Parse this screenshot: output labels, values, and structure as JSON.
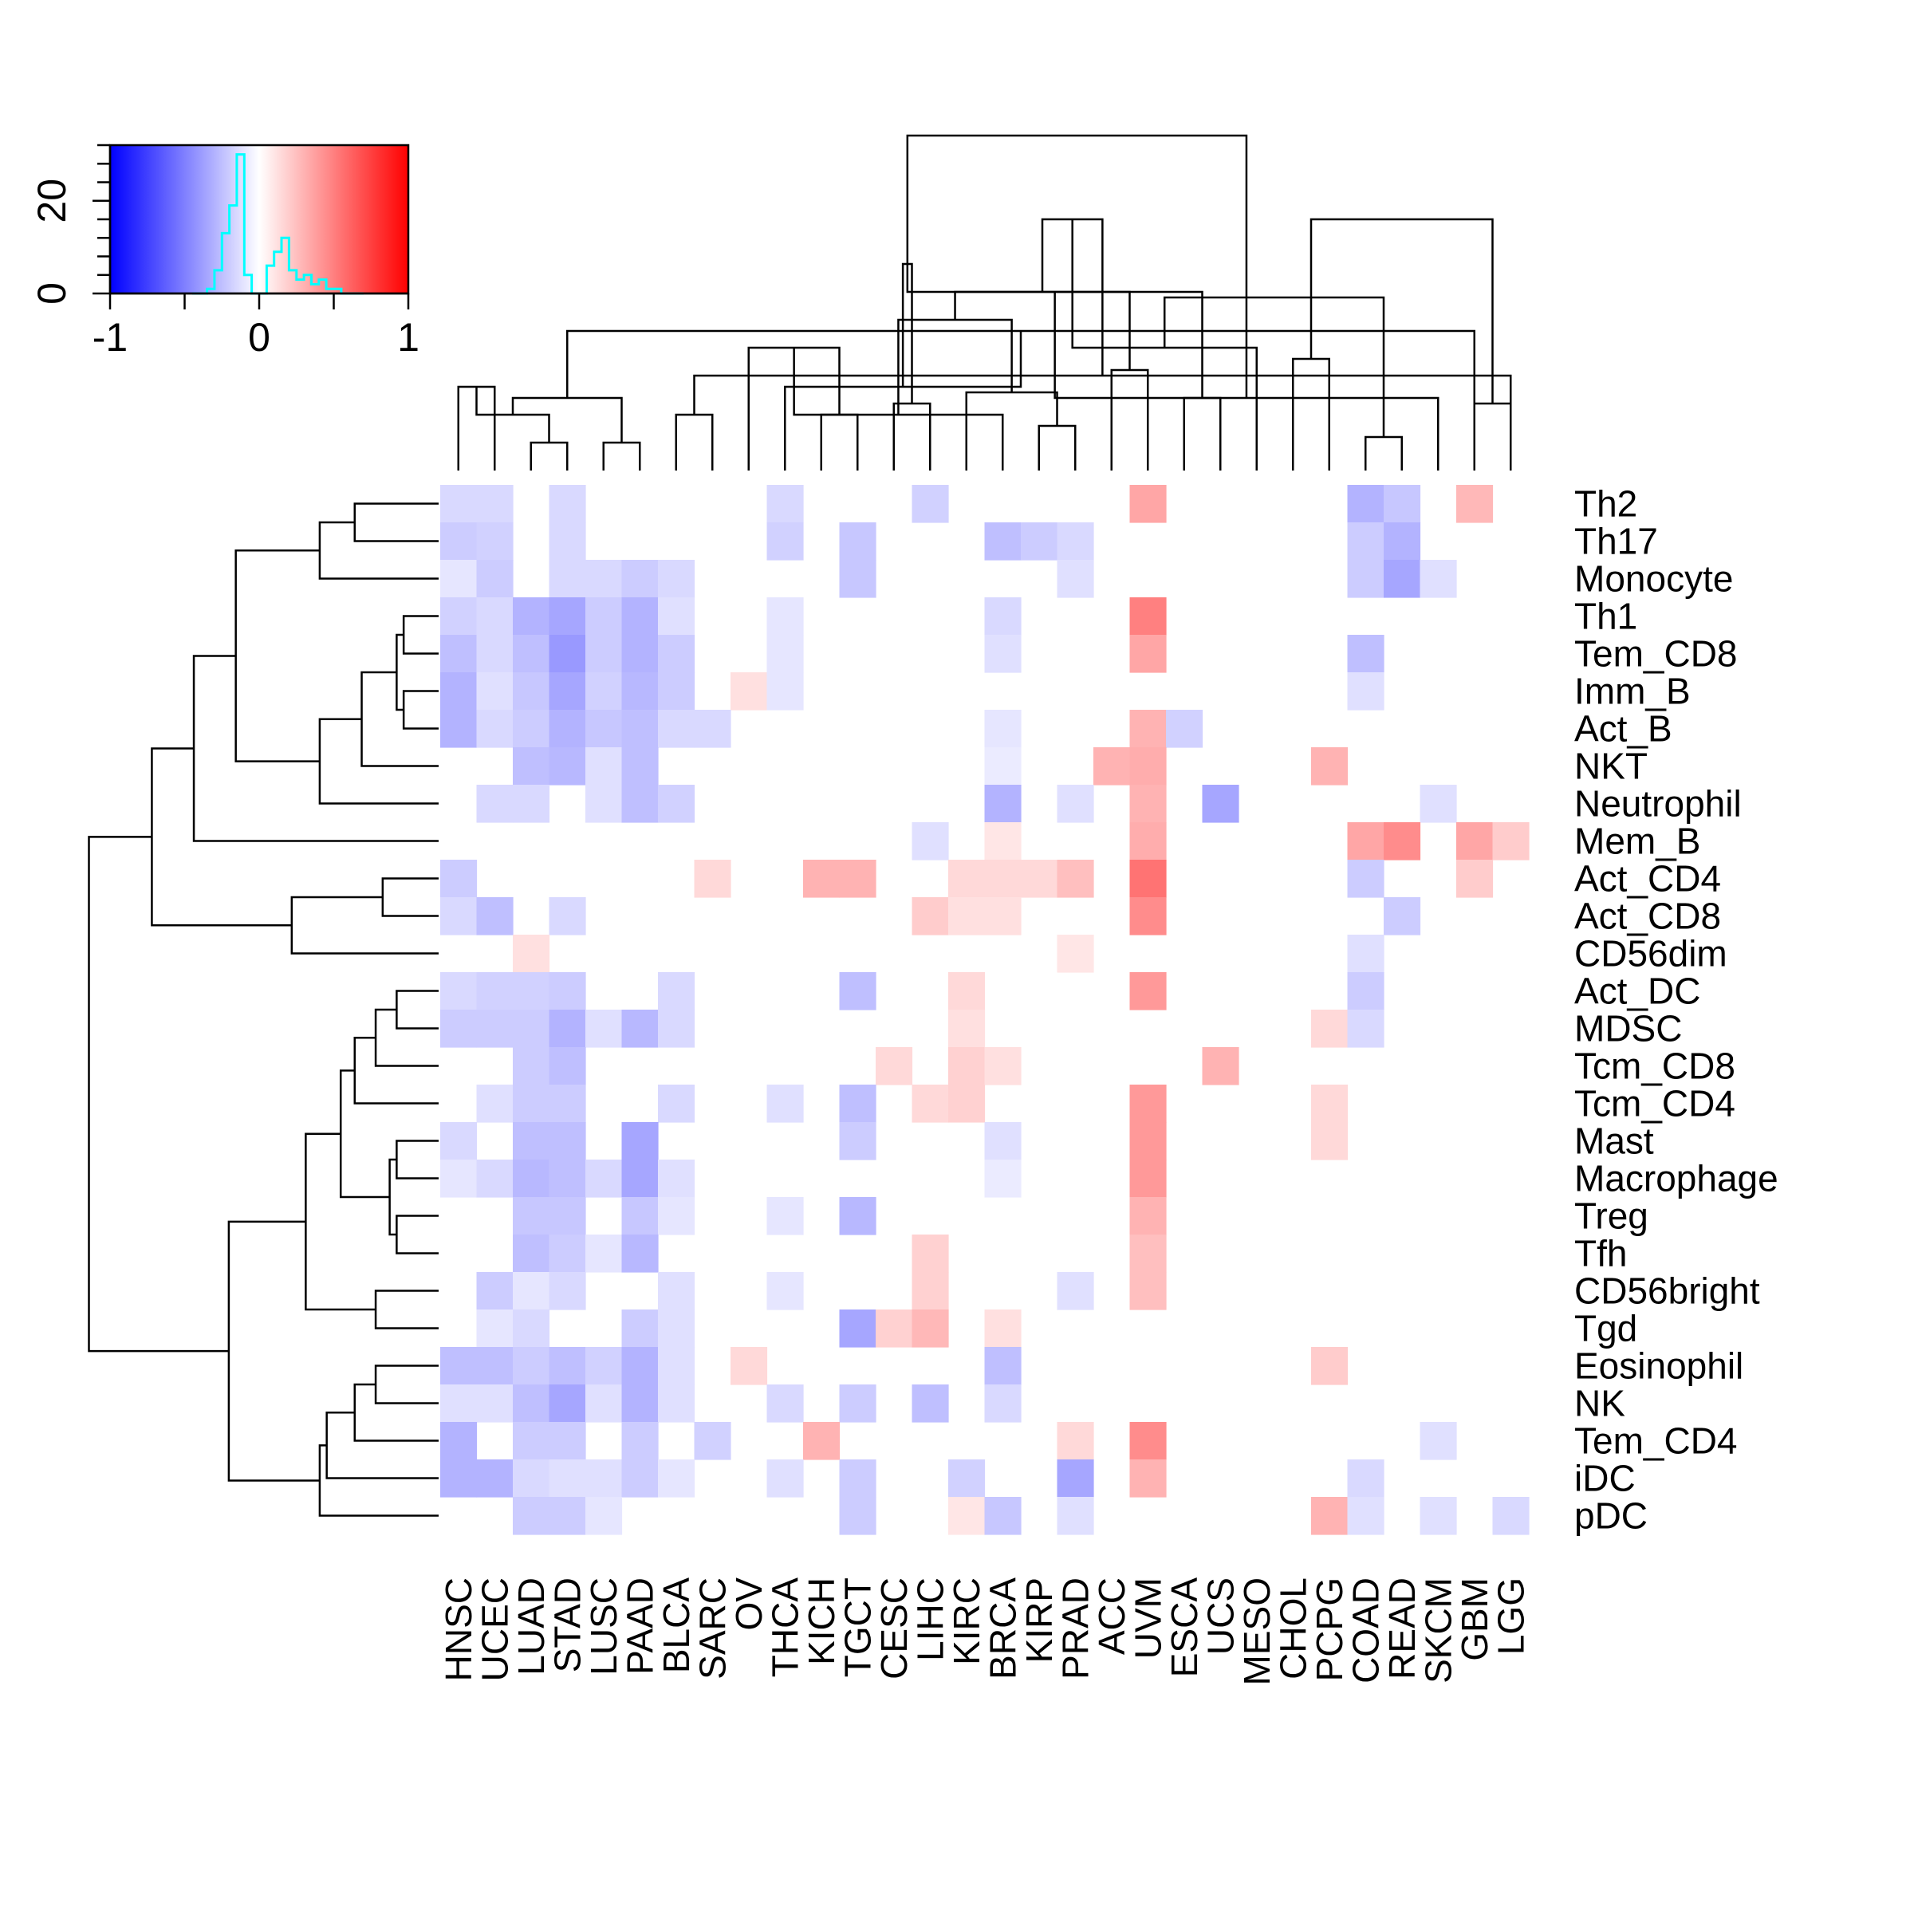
{
  "chart_data": {
    "type": "heatmap",
    "title": "",
    "columns": [
      "HNSC",
      "UCEC",
      "LUAD",
      "STAD",
      "LUSC",
      "PAAD",
      "BLCA",
      "SARC",
      "OV",
      "THCA",
      "KICH",
      "TGCT",
      "CESC",
      "LIHC",
      "KIRC",
      "BRCA",
      "KIRP",
      "PRAD",
      "ACC",
      "UVM",
      "ESCA",
      "UCS",
      "MESO",
      "CHOL",
      "PCPG",
      "COAD",
      "READ",
      "SKCM",
      "GBM",
      "LGG"
    ],
    "rows": [
      "Th2",
      "Th17",
      "Monocyte",
      "Th1",
      "Tem_CD8",
      "Imm_B",
      "Act_B",
      "NKT",
      "Neutrophil",
      "Mem_B",
      "Act_CD4",
      "Act_CD8",
      "CD56dim",
      "Act_DC",
      "MDSC",
      "Tcm_CD8",
      "Tcm_CD4",
      "Mast",
      "Macrophage",
      "Treg",
      "Tfh",
      "CD56bright",
      "Tgd",
      "Eosinophil",
      "NK",
      "Tem_CD4",
      "iDC",
      "pDC"
    ],
    "values": [
      [
        -0.15,
        -0.15,
        0,
        -0.15,
        0,
        0,
        0,
        0,
        0,
        -0.15,
        0,
        0,
        0,
        -0.18,
        0,
        0,
        0,
        0,
        0,
        0.35,
        0,
        0,
        0,
        0,
        0,
        -0.3,
        -0.22,
        0,
        0.28,
        0
      ],
      [
        -0.2,
        -0.18,
        0,
        -0.15,
        0,
        0,
        0,
        0,
        0,
        -0.18,
        0,
        -0.22,
        0,
        0,
        0,
        -0.25,
        -0.2,
        -0.15,
        0,
        0,
        0,
        0,
        0,
        0,
        0,
        -0.2,
        -0.3,
        0,
        0,
        0
      ],
      [
        -0.1,
        -0.2,
        0,
        -0.15,
        -0.15,
        -0.2,
        -0.15,
        0,
        0,
        0,
        0,
        -0.22,
        0,
        0,
        0,
        0,
        0,
        -0.12,
        0,
        0,
        0,
        0,
        0,
        0,
        0,
        -0.2,
        -0.35,
        -0.12,
        0,
        0
      ],
      [
        -0.18,
        -0.15,
        -0.3,
        -0.35,
        -0.2,
        -0.3,
        -0.12,
        0,
        0,
        -0.1,
        0,
        0,
        0,
        0,
        0,
        -0.15,
        0,
        0,
        0,
        0.5,
        0,
        0,
        0,
        0,
        0,
        0,
        0,
        0,
        0,
        0
      ],
      [
        -0.25,
        -0.15,
        -0.25,
        -0.4,
        -0.2,
        -0.3,
        -0.2,
        0,
        0,
        -0.1,
        0,
        0,
        0,
        0,
        0,
        -0.12,
        0,
        0,
        0,
        0.35,
        0,
        0,
        0,
        0,
        0,
        -0.25,
        0,
        0,
        0,
        0
      ],
      [
        -0.3,
        -0.12,
        -0.22,
        -0.35,
        -0.18,
        -0.28,
        -0.2,
        0,
        0.12,
        -0.1,
        0,
        0,
        0,
        0,
        0,
        0,
        0,
        0,
        0,
        0,
        0,
        0,
        0,
        0,
        0,
        -0.12,
        0,
        0,
        0,
        0
      ],
      [
        -0.3,
        -0.15,
        -0.2,
        -0.3,
        -0.22,
        -0.25,
        -0.15,
        -0.15,
        0,
        0,
        0,
        0,
        0,
        0,
        0,
        -0.1,
        0,
        0,
        0,
        0.3,
        -0.18,
        0,
        0,
        0,
        0,
        0,
        0,
        0,
        0,
        0
      ],
      [
        0,
        0,
        -0.25,
        -0.28,
        -0.12,
        -0.25,
        0,
        0,
        0,
        0,
        0,
        0,
        0,
        0,
        0,
        -0.08,
        0,
        0,
        0.3,
        0.32,
        0,
        0,
        0,
        0,
        0.3,
        0,
        0,
        0,
        0,
        0
      ],
      [
        0,
        -0.15,
        -0.15,
        0,
        -0.12,
        -0.25,
        -0.18,
        0,
        0,
        0,
        0,
        0,
        0,
        0,
        0,
        -0.3,
        0,
        -0.12,
        0,
        0.3,
        0,
        -0.35,
        0,
        0,
        0,
        0,
        0,
        -0.12,
        0,
        0
      ],
      [
        0,
        0,
        0,
        0,
        0,
        0,
        0,
        0,
        0,
        0,
        0,
        0,
        0,
        -0.12,
        0,
        0.1,
        0,
        0,
        0,
        0.32,
        0,
        0,
        0,
        0,
        0,
        0.35,
        0.45,
        0,
        0.35,
        0.2
      ],
      [
        -0.2,
        0,
        0,
        0,
        0,
        0,
        0,
        0.15,
        0,
        0,
        0.3,
        0.3,
        0,
        0,
        0.15,
        0.15,
        0.15,
        0.25,
        0,
        0.55,
        0,
        0,
        0,
        0,
        0,
        -0.2,
        0,
        0,
        0.2,
        0
      ],
      [
        -0.15,
        -0.25,
        0,
        -0.15,
        0,
        0,
        0,
        0,
        0,
        0,
        0,
        0,
        0,
        0.2,
        0.12,
        0.12,
        0,
        0,
        0,
        0.45,
        0,
        0,
        0,
        0,
        0,
        0,
        -0.2,
        0,
        0,
        0
      ],
      [
        0,
        0,
        0.12,
        0,
        0,
        0,
        0,
        0,
        0,
        0,
        0,
        0,
        0,
        0,
        0,
        0,
        0,
        0.1,
        0,
        0,
        0,
        0,
        0,
        0,
        0,
        -0.12,
        0,
        0,
        0,
        0
      ],
      [
        -0.15,
        -0.18,
        -0.18,
        -0.2,
        0,
        0,
        -0.15,
        0,
        0,
        0,
        0,
        -0.25,
        0,
        0,
        0.15,
        0,
        0,
        0,
        0,
        0.4,
        0,
        0,
        0,
        0,
        0,
        -0.2,
        0,
        0,
        0,
        0
      ],
      [
        -0.2,
        -0.2,
        -0.2,
        -0.3,
        -0.12,
        -0.28,
        -0.15,
        0,
        0,
        0,
        0,
        0,
        0,
        0,
        0.12,
        0,
        0,
        0,
        0,
        0,
        0,
        0,
        0,
        0,
        0.15,
        -0.15,
        0,
        0,
        0,
        0
      ],
      [
        0,
        0,
        -0.2,
        -0.25,
        0,
        0,
        0,
        0,
        0,
        0,
        0,
        0,
        0.15,
        0,
        0.18,
        0.12,
        0,
        0,
        0,
        0,
        0,
        0.3,
        0,
        0,
        0,
        0,
        0,
        0,
        0,
        0
      ],
      [
        0,
        -0.12,
        -0.2,
        -0.2,
        0,
        0,
        -0.15,
        0,
        0,
        -0.12,
        0,
        -0.25,
        0,
        0.15,
        0.18,
        0,
        0,
        0,
        0,
        0.4,
        0,
        0,
        0,
        0,
        0.15,
        0,
        0,
        0,
        0,
        0
      ],
      [
        -0.15,
        0,
        -0.25,
        -0.25,
        0,
        -0.35,
        0,
        0,
        0,
        0,
        0,
        -0.2,
        0,
        0,
        0,
        -0.12,
        0,
        0,
        0,
        0.4,
        0,
        0,
        0,
        0,
        0.15,
        0,
        0,
        0,
        0,
        0
      ],
      [
        -0.1,
        -0.15,
        -0.28,
        -0.25,
        -0.15,
        -0.35,
        -0.12,
        0,
        0,
        0,
        0,
        0,
        0,
        0,
        0,
        -0.08,
        0,
        0,
        0,
        0.4,
        0,
        0,
        0,
        0,
        0,
        0,
        0,
        0,
        0,
        0
      ],
      [
        0,
        0,
        -0.22,
        -0.22,
        0,
        -0.22,
        -0.1,
        0,
        0,
        -0.1,
        0,
        -0.28,
        0,
        0,
        0,
        0,
        0,
        0,
        0,
        0.3,
        0,
        0,
        0,
        0,
        0,
        0,
        0,
        0,
        0,
        0
      ],
      [
        0,
        0,
        -0.25,
        -0.2,
        -0.1,
        -0.28,
        0,
        0,
        0,
        0,
        0,
        0,
        0,
        0.18,
        0,
        0,
        0,
        0,
        0,
        0.25,
        0,
        0,
        0,
        0,
        0,
        0,
        0,
        0,
        0,
        0
      ],
      [
        0,
        -0.2,
        -0.1,
        -0.15,
        0,
        0,
        -0.12,
        0,
        0,
        -0.1,
        0,
        0,
        0,
        0.18,
        0,
        0,
        0,
        -0.12,
        0,
        0.25,
        0,
        0,
        0,
        0,
        0,
        0,
        0,
        0,
        0,
        0
      ],
      [
        0,
        -0.1,
        -0.15,
        0,
        0,
        -0.2,
        -0.12,
        0,
        0,
        0,
        0,
        -0.35,
        0.18,
        0.28,
        0,
        0.12,
        0,
        0,
        0,
        0,
        0,
        0,
        0,
        0,
        0,
        0,
        0,
        0,
        0,
        0
      ],
      [
        -0.25,
        -0.25,
        -0.2,
        -0.25,
        -0.18,
        -0.3,
        -0.12,
        0,
        0.15,
        0,
        0,
        0,
        0,
        0,
        0,
        -0.25,
        0,
        0,
        0,
        0,
        0,
        0,
        0,
        0,
        0.2,
        0,
        0,
        0,
        0,
        0
      ],
      [
        -0.12,
        -0.12,
        -0.25,
        -0.35,
        -0.12,
        -0.3,
        -0.12,
        0,
        0,
        -0.15,
        0,
        -0.2,
        0,
        -0.25,
        0,
        -0.15,
        0,
        0,
        0,
        0,
        0,
        0,
        0,
        0,
        0,
        0,
        0,
        0,
        0,
        0
      ],
      [
        -0.3,
        0,
        -0.2,
        -0.2,
        0,
        -0.2,
        0,
        -0.18,
        0,
        0,
        0.3,
        0,
        0,
        0,
        0,
        0,
        0,
        0.15,
        0,
        0.45,
        0,
        0,
        0,
        0,
        0,
        0,
        0,
        -0.12,
        0,
        0
      ],
      [
        -0.3,
        -0.3,
        -0.15,
        -0.12,
        -0.12,
        -0.2,
        -0.1,
        0,
        0,
        -0.12,
        0,
        -0.2,
        0,
        0,
        -0.18,
        0,
        0,
        -0.35,
        0,
        0.3,
        0,
        0,
        0,
        0,
        0,
        -0.15,
        0,
        0,
        0,
        0
      ],
      [
        0,
        0,
        -0.2,
        -0.2,
        -0.1,
        0,
        0,
        0,
        0,
        0,
        0,
        -0.2,
        0,
        0,
        0.1,
        -0.22,
        0,
        -0.12,
        0,
        0,
        0,
        0,
        0,
        0,
        0.3,
        -0.12,
        0,
        -0.12,
        0,
        -0.15
      ]
    ],
    "col_dendrogram": [
      [
        0,
        1,
        0.15
      ],
      [
        2,
        3,
        0.05
      ],
      [
        4,
        5,
        0.05
      ],
      [
        30,
        31,
        0.1
      ],
      [
        6,
        7,
        0.1
      ],
      [
        32,
        33,
        0.13
      ],
      [
        29,
        34,
        0.17
      ],
      [
        28,
        35,
        0.25
      ],
      [
        10,
        11,
        0.1
      ],
      [
        9,
        37,
        0.15
      ],
      [
        8,
        38,
        0.22
      ],
      [
        16,
        17,
        0.08
      ],
      [
        15,
        40,
        0.1
      ],
      [
        14,
        41,
        0.14
      ],
      [
        18,
        19,
        0.18
      ],
      [
        42,
        43,
        0.27
      ],
      [
        12,
        13,
        0.12
      ],
      [
        44,
        45,
        0.32
      ],
      [
        39,
        46,
        0.37
      ],
      [
        36,
        47,
        0.45
      ],
      [
        20,
        21,
        0.13
      ],
      [
        23,
        24,
        0.2
      ],
      [
        22,
        49,
        0.22
      ],
      [
        48,
        50,
        0.32
      ],
      [
        25,
        26,
        0.06
      ],
      [
        28,
        29,
        0.12
      ],
      [
        27,
        53,
        0.13
      ],
      [
        52,
        54,
        0.31
      ],
      [
        51,
        55,
        0.45
      ],
      [
        48,
        56,
        0.6
      ]
    ],
    "row_dendrogram": [
      [
        0,
        1,
        0.12
      ],
      [
        28,
        2,
        0.17
      ],
      [
        3,
        4,
        0.05
      ],
      [
        5,
        6,
        0.05
      ],
      [
        30,
        31,
        0.06
      ],
      [
        32,
        7,
        0.11
      ],
      [
        33,
        8,
        0.17
      ],
      [
        29,
        34,
        0.29
      ],
      [
        35,
        9,
        0.35
      ],
      [
        10,
        11,
        0.08
      ],
      [
        37,
        12,
        0.21
      ],
      [
        36,
        38,
        0.41
      ],
      [
        13,
        14,
        0.06
      ],
      [
        40,
        15,
        0.09
      ],
      [
        41,
        16,
        0.12
      ],
      [
        17,
        18,
        0.06
      ],
      [
        19,
        20,
        0.06
      ],
      [
        43,
        44,
        0.07
      ],
      [
        42,
        45,
        0.14
      ],
      [
        21,
        22,
        0.09
      ],
      [
        46,
        47,
        0.19
      ],
      [
        23,
        24,
        0.09
      ],
      [
        49,
        25,
        0.12
      ],
      [
        50,
        26,
        0.16
      ],
      [
        51,
        27,
        0.17
      ],
      [
        48,
        52,
        0.3
      ],
      [
        39,
        53,
        0.5
      ]
    ],
    "color_key": {
      "range": [
        -1,
        1
      ],
      "x_ticks": [
        -1,
        0,
        1
      ],
      "x_tick_labels": [
        "-1",
        "0",
        "1"
      ],
      "y_ticks": [
        0,
        20
      ],
      "y_tick_labels": [
        "0",
        "20"
      ],
      "y_max": 32,
      "low_color": "#0000ff",
      "mid_color": "#ffffff",
      "high_color": "#ff0000",
      "histogram_color": "#00ffff",
      "histogram_bins": [
        [
          -0.35,
          -0.3,
          1
        ],
        [
          -0.3,
          -0.25,
          5
        ],
        [
          -0.25,
          -0.2,
          13
        ],
        [
          -0.2,
          -0.15,
          19
        ],
        [
          -0.15,
          -0.1,
          30
        ],
        [
          -0.1,
          -0.05,
          4
        ],
        [
          0.05,
          0.1,
          6
        ],
        [
          0.1,
          0.15,
          9
        ],
        [
          0.15,
          0.2,
          12
        ],
        [
          0.2,
          0.25,
          5
        ],
        [
          0.25,
          0.3,
          3
        ],
        [
          0.3,
          0.35,
          4
        ],
        [
          0.35,
          0.4,
          2
        ],
        [
          0.4,
          0.45,
          3
        ],
        [
          0.45,
          0.5,
          1
        ],
        [
          0.5,
          0.55,
          1
        ]
      ]
    }
  }
}
